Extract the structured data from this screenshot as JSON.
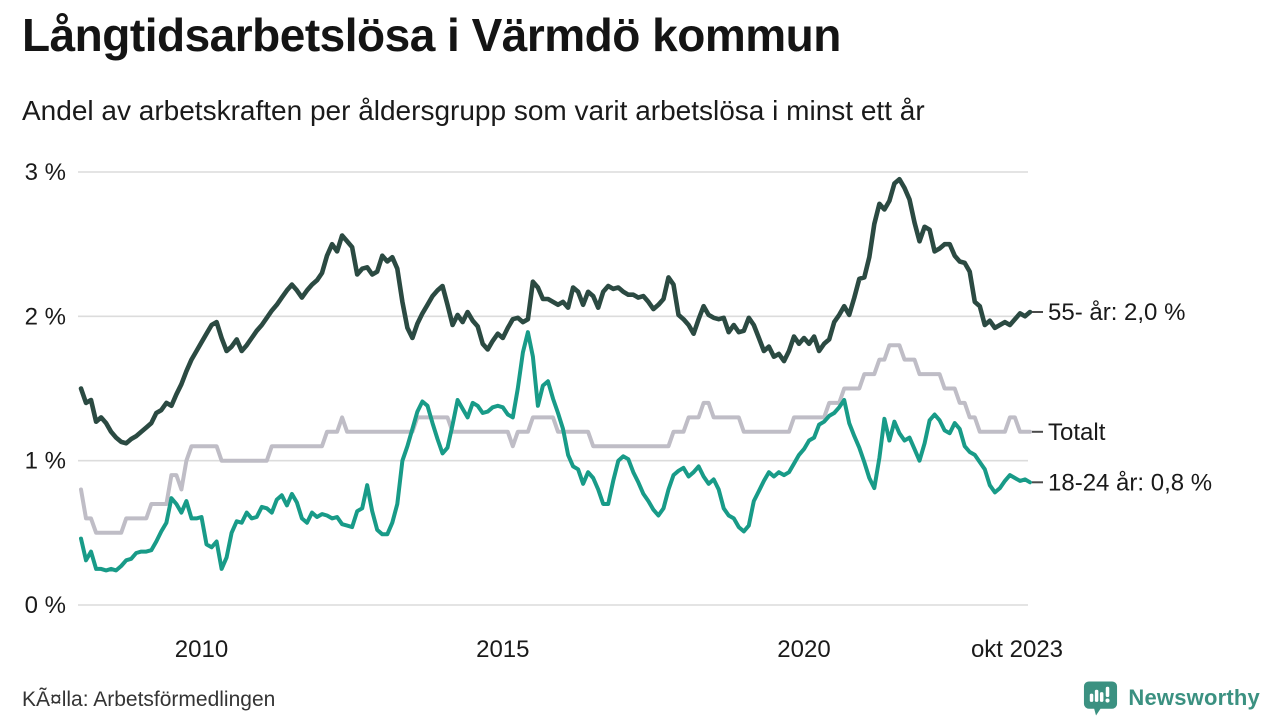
{
  "chart_data": {
    "type": "line",
    "title": "Långtidsarbetslösa i Värmdö kommun",
    "subtitle": "Andel av arbetskraften per åldersgrupp som varit arbetslösa i minst ett år",
    "frequency": "monthly",
    "grid": "horizontal",
    "legend_position": "end-of-line-labels-right",
    "x_axis": {
      "start_month": "2008-01",
      "end_month": "2023-10",
      "ticks": [
        {
          "month_index": 24,
          "label": "2010"
        },
        {
          "month_index": 84,
          "label": "2015"
        },
        {
          "month_index": 144,
          "label": "2020"
        },
        {
          "month_index": 189,
          "label": "okt 2023"
        }
      ]
    },
    "y_axis": {
      "unit": "%",
      "min_value": 0,
      "max_value": 3,
      "ticks": [
        {
          "value": 0,
          "label": "0 %"
        },
        {
          "value": 1,
          "label": "1 %"
        },
        {
          "value": 2,
          "label": "2 %"
        },
        {
          "value": 3,
          "label": "3 %"
        }
      ]
    },
    "series": [
      {
        "id": "totalt",
        "name": "Totalt",
        "end_label": "Totalt",
        "color": "#bfbdc6",
        "line_width": 4,
        "values": [
          0.8,
          0.6,
          0.6,
          0.5,
          0.5,
          0.5,
          0.5,
          0.5,
          0.5,
          0.6,
          0.6,
          0.6,
          0.6,
          0.6,
          0.7,
          0.7,
          0.7,
          0.7,
          0.9,
          0.9,
          0.8,
          1.0,
          1.1,
          1.1,
          1.1,
          1.1,
          1.1,
          1.1,
          1.0,
          1.0,
          1.0,
          1.0,
          1.0,
          1.0,
          1.0,
          1.0,
          1.0,
          1.0,
          1.1,
          1.1,
          1.1,
          1.1,
          1.1,
          1.1,
          1.1,
          1.1,
          1.1,
          1.1,
          1.1,
          1.2,
          1.2,
          1.2,
          1.3,
          1.2,
          1.2,
          1.2,
          1.2,
          1.2,
          1.2,
          1.2,
          1.2,
          1.2,
          1.2,
          1.2,
          1.2,
          1.2,
          1.2,
          1.3,
          1.3,
          1.3,
          1.3,
          1.3,
          1.3,
          1.3,
          1.2,
          1.2,
          1.2,
          1.2,
          1.2,
          1.2,
          1.2,
          1.2,
          1.2,
          1.2,
          1.2,
          1.2,
          1.1,
          1.2,
          1.2,
          1.2,
          1.3,
          1.3,
          1.3,
          1.3,
          1.3,
          1.2,
          1.2,
          1.2,
          1.2,
          1.2,
          1.2,
          1.2,
          1.1,
          1.1,
          1.1,
          1.1,
          1.1,
          1.1,
          1.1,
          1.1,
          1.1,
          1.1,
          1.1,
          1.1,
          1.1,
          1.1,
          1.1,
          1.1,
          1.2,
          1.2,
          1.2,
          1.3,
          1.3,
          1.3,
          1.4,
          1.4,
          1.3,
          1.3,
          1.3,
          1.3,
          1.3,
          1.3,
          1.2,
          1.2,
          1.2,
          1.2,
          1.2,
          1.2,
          1.2,
          1.2,
          1.2,
          1.2,
          1.3,
          1.3,
          1.3,
          1.3,
          1.3,
          1.3,
          1.3,
          1.4,
          1.4,
          1.4,
          1.5,
          1.5,
          1.5,
          1.5,
          1.6,
          1.6,
          1.6,
          1.7,
          1.7,
          1.8,
          1.8,
          1.8,
          1.7,
          1.7,
          1.7,
          1.6,
          1.6,
          1.6,
          1.6,
          1.6,
          1.5,
          1.5,
          1.5,
          1.4,
          1.4,
          1.3,
          1.3,
          1.2,
          1.2,
          1.2,
          1.2,
          1.2,
          1.2,
          1.3,
          1.3,
          1.2,
          1.2,
          1.2
        ]
      },
      {
        "id": "18-24-ar",
        "name": "18-24 år",
        "end_label": "18-24 år: 0,8 %",
        "color": "#189b88",
        "line_width": 4,
        "values": [
          0.46,
          0.31,
          0.37,
          0.25,
          0.25,
          0.24,
          0.25,
          0.24,
          0.27,
          0.31,
          0.32,
          0.36,
          0.37,
          0.37,
          0.38,
          0.44,
          0.51,
          0.57,
          0.74,
          0.7,
          0.64,
          0.72,
          0.6,
          0.6,
          0.61,
          0.42,
          0.4,
          0.44,
          0.25,
          0.33,
          0.5,
          0.58,
          0.57,
          0.64,
          0.6,
          0.61,
          0.68,
          0.67,
          0.64,
          0.73,
          0.76,
          0.69,
          0.77,
          0.71,
          0.6,
          0.57,
          0.64,
          0.61,
          0.63,
          0.62,
          0.6,
          0.61,
          0.56,
          0.55,
          0.54,
          0.65,
          0.67,
          0.83,
          0.65,
          0.52,
          0.49,
          0.49,
          0.57,
          0.7,
          1.0,
          1.1,
          1.22,
          1.34,
          1.41,
          1.38,
          1.26,
          1.15,
          1.05,
          1.09,
          1.25,
          1.42,
          1.36,
          1.3,
          1.4,
          1.38,
          1.33,
          1.34,
          1.37,
          1.38,
          1.37,
          1.32,
          1.3,
          1.5,
          1.75,
          1.89,
          1.72,
          1.38,
          1.52,
          1.55,
          1.43,
          1.33,
          1.22,
          1.04,
          0.96,
          0.94,
          0.84,
          0.92,
          0.88,
          0.8,
          0.7,
          0.7,
          0.86,
          1.0,
          1.03,
          1.01,
          0.92,
          0.85,
          0.77,
          0.72,
          0.66,
          0.62,
          0.67,
          0.8,
          0.9,
          0.93,
          0.95,
          0.89,
          0.92,
          0.96,
          0.89,
          0.84,
          0.87,
          0.8,
          0.67,
          0.62,
          0.6,
          0.54,
          0.51,
          0.55,
          0.72,
          0.79,
          0.86,
          0.92,
          0.89,
          0.92,
          0.9,
          0.92,
          0.98,
          1.04,
          1.08,
          1.14,
          1.16,
          1.25,
          1.27,
          1.31,
          1.33,
          1.37,
          1.42,
          1.26,
          1.17,
          1.09,
          0.99,
          0.88,
          0.81,
          1.02,
          1.29,
          1.14,
          1.27,
          1.19,
          1.14,
          1.16,
          1.08,
          1.0,
          1.12,
          1.28,
          1.32,
          1.28,
          1.21,
          1.19,
          1.26,
          1.22,
          1.1,
          1.06,
          1.04,
          0.99,
          0.94,
          0.83,
          0.78,
          0.81,
          0.86,
          0.9,
          0.88,
          0.86,
          0.87,
          0.85
        ]
      },
      {
        "id": "55-ar",
        "name": "55- år",
        "end_label": "55- år: 2,0 %",
        "color": "#2b4a42",
        "line_width": 4.6,
        "values": [
          1.5,
          1.4,
          1.42,
          1.27,
          1.3,
          1.26,
          1.2,
          1.16,
          1.13,
          1.12,
          1.15,
          1.17,
          1.2,
          1.23,
          1.26,
          1.33,
          1.35,
          1.4,
          1.38,
          1.46,
          1.53,
          1.62,
          1.7,
          1.76,
          1.82,
          1.88,
          1.94,
          1.96,
          1.85,
          1.76,
          1.79,
          1.84,
          1.76,
          1.8,
          1.85,
          1.9,
          1.94,
          1.99,
          2.04,
          2.08,
          2.13,
          2.18,
          2.22,
          2.18,
          2.13,
          2.18,
          2.22,
          2.25,
          2.3,
          2.42,
          2.5,
          2.45,
          2.56,
          2.52,
          2.48,
          2.29,
          2.33,
          2.34,
          2.29,
          2.31,
          2.42,
          2.38,
          2.41,
          2.33,
          2.1,
          1.92,
          1.85,
          1.95,
          2.02,
          2.08,
          2.14,
          2.18,
          2.21,
          2.08,
          1.94,
          2.01,
          1.96,
          2.03,
          1.97,
          1.93,
          1.81,
          1.77,
          1.83,
          1.88,
          1.85,
          1.92,
          1.98,
          1.99,
          1.96,
          1.98,
          2.24,
          2.2,
          2.12,
          2.12,
          2.1,
          2.08,
          2.1,
          2.06,
          2.2,
          2.17,
          2.08,
          2.17,
          2.14,
          2.06,
          2.17,
          2.21,
          2.19,
          2.2,
          2.17,
          2.15,
          2.15,
          2.13,
          2.14,
          2.1,
          2.05,
          2.08,
          2.12,
          2.27,
          2.22,
          2.01,
          1.98,
          1.94,
          1.88,
          1.98,
          2.07,
          2.01,
          1.99,
          1.98,
          1.99,
          1.89,
          1.94,
          1.89,
          1.9,
          1.99,
          1.94,
          1.85,
          1.76,
          1.79,
          1.72,
          1.74,
          1.69,
          1.76,
          1.86,
          1.81,
          1.85,
          1.81,
          1.86,
          1.76,
          1.81,
          1.84,
          1.96,
          2.01,
          2.07,
          2.01,
          2.13,
          2.26,
          2.27,
          2.41,
          2.64,
          2.78,
          2.74,
          2.8,
          2.92,
          2.95,
          2.89,
          2.81,
          2.65,
          2.52,
          2.62,
          2.6,
          2.45,
          2.47,
          2.5,
          2.5,
          2.42,
          2.38,
          2.37,
          2.31,
          2.1,
          2.07,
          1.94,
          1.97,
          1.92,
          1.94,
          1.96,
          1.94,
          1.98,
          2.02,
          2.0,
          2.03
        ]
      }
    ],
    "colors": {
      "grid": "#dcdcdc",
      "axis_text": "#1a1a1a",
      "end_label_text": "#1a1a1a",
      "end_label_tick": "#4a4a4a"
    }
  },
  "footer": {
    "source": "KÃ¤lla: Arbetsförmedlingen",
    "brand": "Newsworthy",
    "brand_color": "#3b9181"
  }
}
